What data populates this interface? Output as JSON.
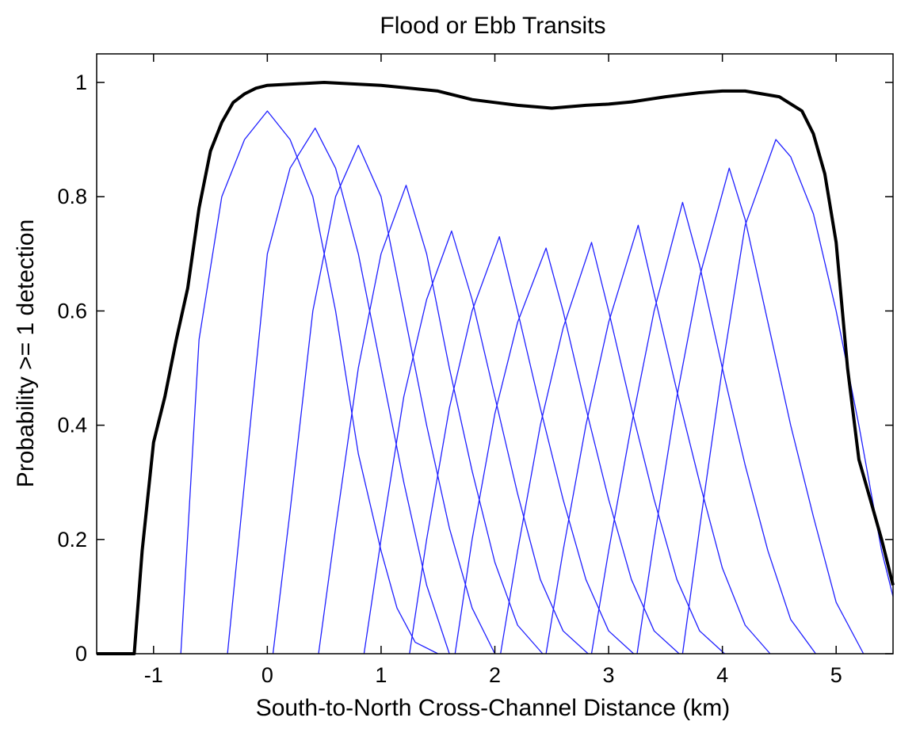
{
  "chart_data": {
    "type": "line",
    "title": "Flood or Ebb Transits",
    "xlabel": "South-to-North Cross-Channel Distance (km)",
    "ylabel": "Probability >= 1 detection",
    "xlim": [
      -1.5,
      5.5
    ],
    "ylim": [
      0,
      1.05
    ],
    "xticks": [
      -1,
      0,
      1,
      2,
      3,
      4,
      5
    ],
    "yticks": [
      0,
      0.2,
      0.4,
      0.6,
      0.8,
      1
    ],
    "xtick_labels": [
      "-1",
      "0",
      "1",
      "2",
      "3",
      "4",
      "5"
    ],
    "ytick_labels": [
      "0",
      "0.2",
      "0.4",
      "0.6",
      "0.8",
      "1"
    ],
    "grid": false,
    "colors": {
      "individual": "#1f1fff",
      "combined": "#000000"
    },
    "series": [
      {
        "role": "individual",
        "x": [
          -0.76,
          -0.6,
          -0.4,
          -0.2,
          0.0,
          0.2,
          0.4,
          0.6,
          0.8,
          1.0,
          1.14,
          1.3,
          1.5
        ],
        "y": [
          0,
          0.55,
          0.8,
          0.9,
          0.95,
          0.9,
          0.8,
          0.6,
          0.35,
          0.18,
          0.08,
          0.02,
          0
        ]
      },
      {
        "role": "individual",
        "x": [
          -0.35,
          -0.2,
          0.0,
          0.2,
          0.42,
          0.6,
          0.8,
          1.0,
          1.2,
          1.4,
          1.6
        ],
        "y": [
          0,
          0.3,
          0.7,
          0.85,
          0.92,
          0.85,
          0.7,
          0.5,
          0.3,
          0.12,
          0
        ]
      },
      {
        "role": "individual",
        "x": [
          0.05,
          0.2,
          0.4,
          0.6,
          0.8,
          1.0,
          1.2,
          1.4,
          1.6,
          1.8,
          2.0
        ],
        "y": [
          0,
          0.25,
          0.6,
          0.8,
          0.89,
          0.8,
          0.6,
          0.4,
          0.22,
          0.08,
          0
        ]
      },
      {
        "role": "individual",
        "x": [
          0.45,
          0.6,
          0.8,
          1.0,
          1.22,
          1.4,
          1.6,
          1.8,
          2.0,
          2.2,
          2.42
        ],
        "y": [
          0,
          0.22,
          0.5,
          0.7,
          0.82,
          0.7,
          0.5,
          0.32,
          0.16,
          0.05,
          0
        ]
      },
      {
        "role": "individual",
        "x": [
          0.85,
          1.0,
          1.2,
          1.4,
          1.62,
          1.8,
          2.0,
          2.2,
          2.4,
          2.6,
          2.82
        ],
        "y": [
          0,
          0.2,
          0.45,
          0.62,
          0.74,
          0.62,
          0.45,
          0.28,
          0.13,
          0.04,
          0
        ]
      },
      {
        "role": "individual",
        "x": [
          1.25,
          1.4,
          1.6,
          1.8,
          2.04,
          2.2,
          2.4,
          2.6,
          2.8,
          3.0,
          3.22
        ],
        "y": [
          0,
          0.2,
          0.43,
          0.6,
          0.73,
          0.6,
          0.43,
          0.27,
          0.13,
          0.04,
          0
        ]
      },
      {
        "role": "individual",
        "x": [
          1.65,
          1.8,
          2.0,
          2.2,
          2.45,
          2.6,
          2.8,
          3.0,
          3.2,
          3.4,
          3.62
        ],
        "y": [
          0,
          0.2,
          0.42,
          0.58,
          0.71,
          0.6,
          0.43,
          0.27,
          0.13,
          0.04,
          0
        ]
      },
      {
        "role": "individual",
        "x": [
          2.05,
          2.2,
          2.4,
          2.6,
          2.85,
          3.0,
          3.2,
          3.4,
          3.6,
          3.8,
          4.02
        ],
        "y": [
          0,
          0.18,
          0.4,
          0.57,
          0.72,
          0.6,
          0.43,
          0.27,
          0.13,
          0.04,
          0
        ]
      },
      {
        "role": "individual",
        "x": [
          2.45,
          2.6,
          2.8,
          3.0,
          3.26,
          3.4,
          3.6,
          3.8,
          4.0,
          4.2,
          4.42
        ],
        "y": [
          0,
          0.18,
          0.4,
          0.58,
          0.75,
          0.63,
          0.46,
          0.3,
          0.15,
          0.05,
          0
        ]
      },
      {
        "role": "individual",
        "x": [
          2.85,
          3.0,
          3.2,
          3.4,
          3.65,
          3.8,
          4.0,
          4.2,
          4.4,
          4.6,
          4.82
        ],
        "y": [
          0,
          0.18,
          0.4,
          0.6,
          0.79,
          0.68,
          0.5,
          0.33,
          0.18,
          0.06,
          0
        ]
      },
      {
        "role": "individual",
        "x": [
          3.25,
          3.4,
          3.6,
          3.8,
          4.06,
          4.2,
          4.4,
          4.6,
          4.8,
          5.0,
          5.24
        ],
        "y": [
          0,
          0.2,
          0.45,
          0.66,
          0.85,
          0.76,
          0.58,
          0.4,
          0.24,
          0.09,
          0
        ]
      },
      {
        "role": "individual",
        "x": [
          3.65,
          3.8,
          4.0,
          4.2,
          4.47,
          4.6,
          4.8,
          5.0,
          5.2,
          5.4,
          5.5
        ],
        "y": [
          0,
          0.22,
          0.5,
          0.75,
          0.9,
          0.87,
          0.77,
          0.6,
          0.4,
          0.18,
          0.1
        ]
      },
      {
        "role": "combined",
        "x": [
          -1.5,
          -1.17,
          -1.1,
          -1.0,
          -0.9,
          -0.8,
          -0.7,
          -0.6,
          -0.5,
          -0.4,
          -0.3,
          -0.2,
          -0.1,
          0.0,
          0.5,
          1.0,
          1.5,
          1.8,
          2.0,
          2.2,
          2.5,
          2.8,
          3.0,
          3.2,
          3.5,
          3.8,
          4.0,
          4.2,
          4.5,
          4.7,
          4.8,
          4.9,
          5.0,
          5.1,
          5.2,
          5.3,
          5.4,
          5.5
        ],
        "y": [
          0,
          0,
          0.18,
          0.37,
          0.45,
          0.55,
          0.64,
          0.78,
          0.88,
          0.93,
          0.965,
          0.98,
          0.99,
          0.995,
          1.0,
          0.995,
          0.985,
          0.97,
          0.965,
          0.96,
          0.955,
          0.96,
          0.962,
          0.966,
          0.975,
          0.982,
          0.985,
          0.985,
          0.975,
          0.95,
          0.91,
          0.84,
          0.72,
          0.5,
          0.34,
          0.27,
          0.2,
          0.12
        ]
      }
    ]
  }
}
